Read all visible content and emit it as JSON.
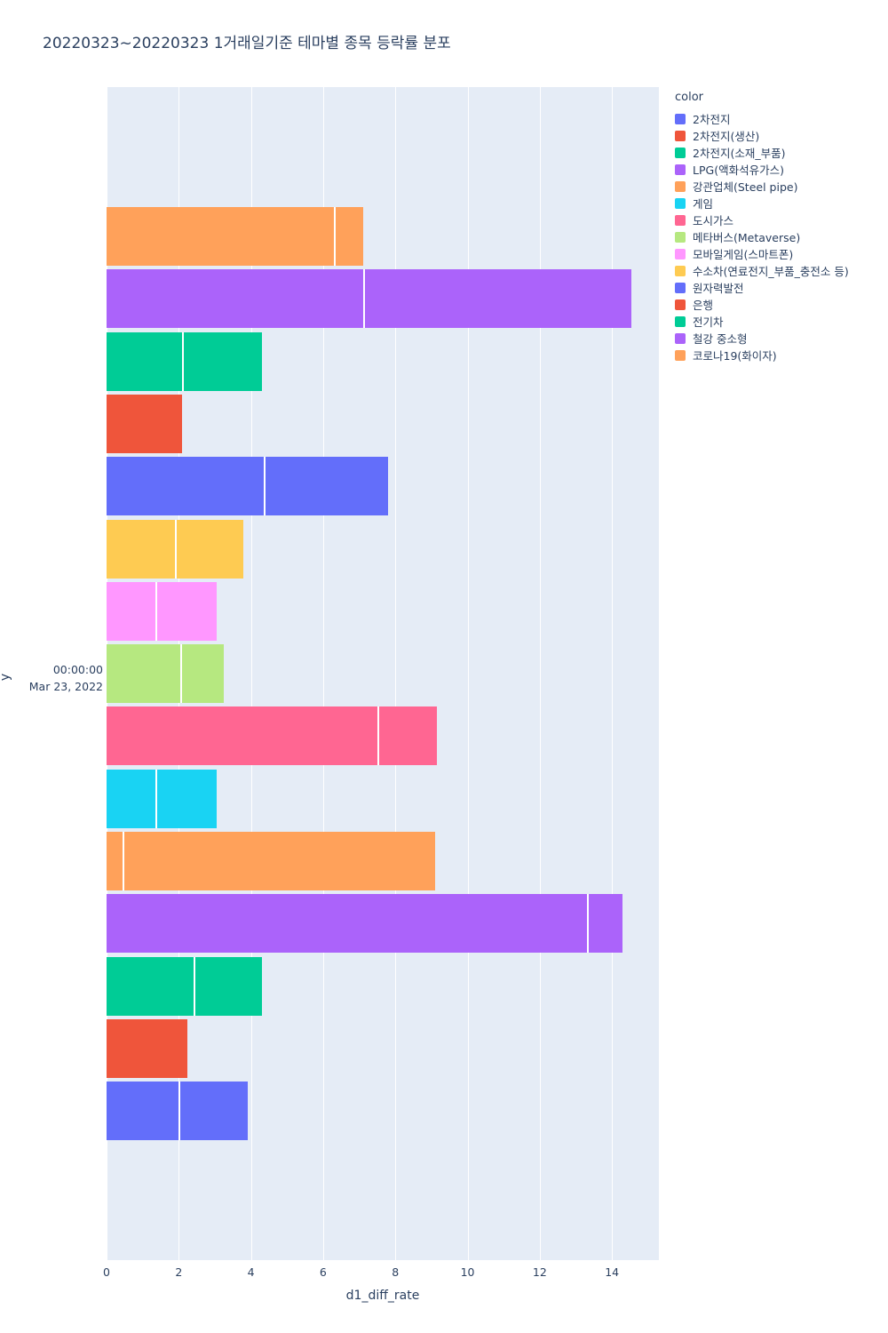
{
  "title": "20220323~20220323 1거래일기준 테마별 종목 등락률 분포",
  "chart_data": {
    "type": "bar",
    "orientation": "horizontal",
    "title": "20220323~20220323 1거래일기준 테마별 종목 등락률 분포",
    "xlabel": "d1_diff_rate",
    "ylabel": "y",
    "y_tick_lines": [
      "00:00:00",
      "Mar 23, 2022"
    ],
    "xlim": [
      0,
      15.3
    ],
    "x_ticks": [
      0,
      2,
      4,
      6,
      8,
      10,
      12,
      14
    ],
    "plot_bg": "#E5ECF6",
    "grid_color": "#ffffff",
    "legend_title": "color",
    "legend": [
      {
        "label": "2차전지",
        "color": "#636EFA"
      },
      {
        "label": "2차전지(생산)",
        "color": "#EF553B"
      },
      {
        "label": "2차전지(소재_부품)",
        "color": "#00CC96"
      },
      {
        "label": "LPG(액화석유가스)",
        "color": "#AB63FA"
      },
      {
        "label": "강관업체(Steel pipe)",
        "color": "#FFA15A"
      },
      {
        "label": "게임",
        "color": "#19D3F3"
      },
      {
        "label": "도시가스",
        "color": "#FF6692"
      },
      {
        "label": "메타버스(Metaverse)",
        "color": "#B6E880"
      },
      {
        "label": "모바일게임(스마트폰)",
        "color": "#FF97FF"
      },
      {
        "label": "수소차(연료전지_부품_충전소 등)",
        "color": "#FECB52"
      },
      {
        "label": "원자력발전",
        "color": "#636EFA"
      },
      {
        "label": "은행",
        "color": "#EF553B"
      },
      {
        "label": "전기차",
        "color": "#00CC96"
      },
      {
        "label": "철강 중소형",
        "color": "#AB63FA"
      },
      {
        "label": "코로나19(화이자)",
        "color": "#FFA15A"
      }
    ],
    "bars_top_to_bottom": [
      {
        "theme": "코로나19(화이자)",
        "color": "#FFA15A",
        "segments": [
          6.3,
          0.8
        ],
        "total": 7.1
      },
      {
        "theme": "철강 중소형",
        "color": "#AB63FA",
        "segments": [
          7.1,
          7.45
        ],
        "total": 14.55
      },
      {
        "theme": "전기차",
        "color": "#00CC96",
        "segments": [
          2.1,
          2.2
        ],
        "total": 4.3
      },
      {
        "theme": "은행",
        "color": "#EF553B",
        "segments": [
          2.1
        ],
        "total": 2.1
      },
      {
        "theme": "원자력발전",
        "color": "#636EFA",
        "segments": [
          4.35,
          3.45
        ],
        "total": 7.8
      },
      {
        "theme": "수소차(연료전지_부품_충전소 등)",
        "color": "#FECB52",
        "segments": [
          1.9,
          1.9
        ],
        "total": 3.8
      },
      {
        "theme": "모바일게임(스마트폰)",
        "color": "#FF97FF",
        "segments": [
          1.35,
          1.7
        ],
        "total": 3.05
      },
      {
        "theme": "메타버스(Metaverse)",
        "color": "#B6E880",
        "segments": [
          2.05,
          1.2
        ],
        "total": 3.25
      },
      {
        "theme": "도시가스",
        "color": "#FF6692",
        "segments": [
          7.5,
          1.65
        ],
        "total": 9.15
      },
      {
        "theme": "게임",
        "color": "#19D3F3",
        "segments": [
          1.35,
          1.7
        ],
        "total": 3.05
      },
      {
        "theme": "강관업체(Steel pipe)",
        "color": "#FFA15A",
        "segments": [
          0.45,
          8.65
        ],
        "total": 9.1
      },
      {
        "theme": "LPG(액화석유가스)",
        "color": "#AB63FA",
        "segments": [
          13.3,
          1.0
        ],
        "total": 14.3
      },
      {
        "theme": "2차전지(소재_부품)",
        "color": "#00CC96",
        "segments": [
          2.4,
          1.9
        ],
        "total": 4.3
      },
      {
        "theme": "2차전지(생산)",
        "color": "#EF553B",
        "segments": [
          2.25
        ],
        "total": 2.25
      },
      {
        "theme": "2차전지",
        "color": "#636EFA",
        "segments": [
          2.0,
          1.9
        ],
        "total": 3.9
      }
    ]
  }
}
